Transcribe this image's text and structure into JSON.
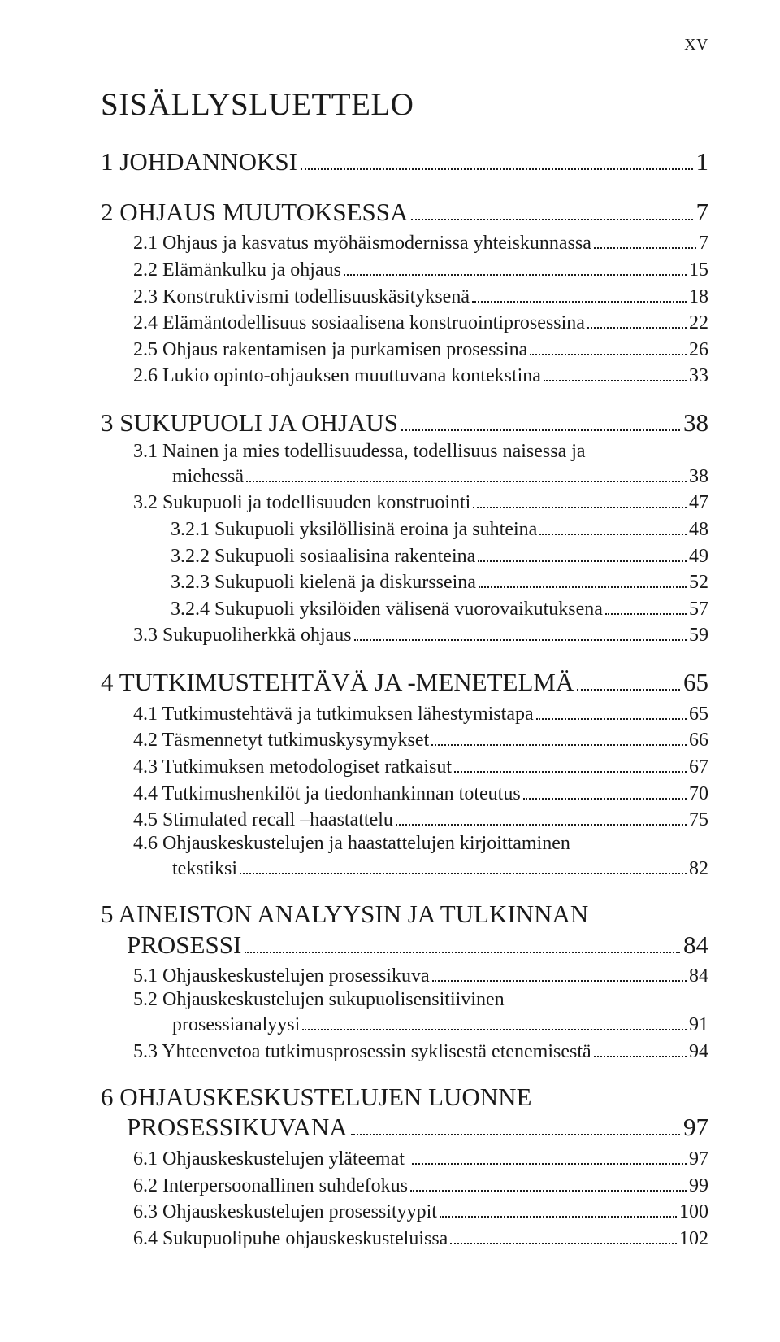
{
  "page_number_roman": "XV",
  "title": "SISÄLLYSLUETTELO",
  "colors": {
    "text": "#1a1a1a",
    "background": "#ffffff"
  },
  "typography": {
    "family": "Georgia/serif",
    "title_size_pt": 30,
    "l1_size_pt": 24,
    "l2_size_pt": 18,
    "l3_size_pt": 18
  },
  "toc": [
    {
      "level": 1,
      "label": "1 JOHDANNOKSI",
      "page": "1"
    },
    {
      "level": 1,
      "label": "2 OHJAUS  MUUTOKSESSA",
      "page": "7"
    },
    {
      "level": 2,
      "label": "2.1 Ohjaus ja kasvatus myöhäismodernissa yhteiskunnassa",
      "page": "7"
    },
    {
      "level": 2,
      "label": "2.2 Elämänkulku ja ohjaus",
      "page": "15"
    },
    {
      "level": 2,
      "label": "2.3 Konstruktivismi todellisuuskäsityksenä",
      "page": "18"
    },
    {
      "level": 2,
      "label": "2.4 Elämäntodellisuus sosiaalisena konstruointiprosessina",
      "page": "22"
    },
    {
      "level": 2,
      "label": "2.5 Ohjaus rakentamisen ja purkamisen prosessina",
      "page": "26"
    },
    {
      "level": 2,
      "label": "2.6 Lukio opinto-ohjauksen muuttuvana kontekstina",
      "page": "33"
    },
    {
      "level": 1,
      "label": "3 SUKUPUOLI JA OHJAUS",
      "page": "38"
    },
    {
      "level": 2,
      "wrap": true,
      "line1": "3.1 Nainen ja mies todellisuudessa, todellisuus naisessa ja",
      "line2": "miehessä",
      "page": "38"
    },
    {
      "level": 2,
      "label": "3.2 Sukupuoli ja todellisuuden konstruointi",
      "page": "47"
    },
    {
      "level": 3,
      "label": "3.2.1 Sukupuoli yksilöllisinä eroina ja suhteina",
      "page": "48"
    },
    {
      "level": 3,
      "label": "3.2.2 Sukupuoli  sosiaalisina rakenteina",
      "page": "49"
    },
    {
      "level": 3,
      "label": "3.2.3 Sukupuoli kielenä ja diskursseina",
      "page": "52"
    },
    {
      "level": 3,
      "label": "3.2.4 Sukupuoli yksilöiden välisenä vuorovaikutuksena",
      "page": "57"
    },
    {
      "level": 2,
      "label": "3.3 Sukupuoliherkkä ohjaus",
      "page": "59"
    },
    {
      "level": 1,
      "label": "4 TUTKIMUSTEHTÄVÄ JA -MENETELMÄ",
      "page": "65"
    },
    {
      "level": 2,
      "label": "4.1 Tutkimustehtävä ja tutkimuksen lähestymistapa",
      "page": "65"
    },
    {
      "level": 2,
      "label": "4.2 Täsmennetyt tutkimuskysymykset",
      "page": "66"
    },
    {
      "level": 2,
      "label": "4.3 Tutkimuksen metodologiset ratkaisut",
      "page": "67"
    },
    {
      "level": 2,
      "label": "4.4 Tutkimushenkilöt ja tiedonhankinnan toteutus",
      "page": "70"
    },
    {
      "level": 2,
      "label": "4.5 Stimulated recall –haastattelu",
      "page": "75"
    },
    {
      "level": 2,
      "wrap": true,
      "line1": "4.6 Ohjauskeskustelujen ja haastattelujen kirjoittaminen",
      "line2": "tekstiksi",
      "page": "82"
    },
    {
      "level": 1,
      "wrap": true,
      "line1": "5 AINEISTON ANALYYSIN JA TULKINNAN",
      "line2": "PROSESSI",
      "page": "84"
    },
    {
      "level": 2,
      "label": "5.1 Ohjauskeskustelujen prosessikuva",
      "page": "84"
    },
    {
      "level": 2,
      "wrap": true,
      "line1": "5.2 Ohjauskeskustelujen sukupuolisensitiivinen",
      "line2": "prosessianalyysi",
      "page": "91"
    },
    {
      "level": 2,
      "label": "5.3 Yhteenvetoa tutkimusprosessin syklisestä etenemisestä",
      "page": "94"
    },
    {
      "level": 1,
      "wrap": true,
      "line1": "6 OHJAUSKESKUSTELUJEN LUONNE",
      "line2": "PROSESSIKUVANA",
      "page": "97"
    },
    {
      "level": 2,
      "label": "6.1 Ohjauskeskustelujen yläteemat ",
      "page": "97"
    },
    {
      "level": 2,
      "label": "6.2 Interpersoonallinen suhdefokus",
      "page": "99"
    },
    {
      "level": 2,
      "label": "6.3 Ohjauskeskustelujen prosessityypit",
      "page": "100"
    },
    {
      "level": 2,
      "label": "6.4 Sukupuolipuhe ohjauskeskusteluissa",
      "page": "102"
    }
  ]
}
